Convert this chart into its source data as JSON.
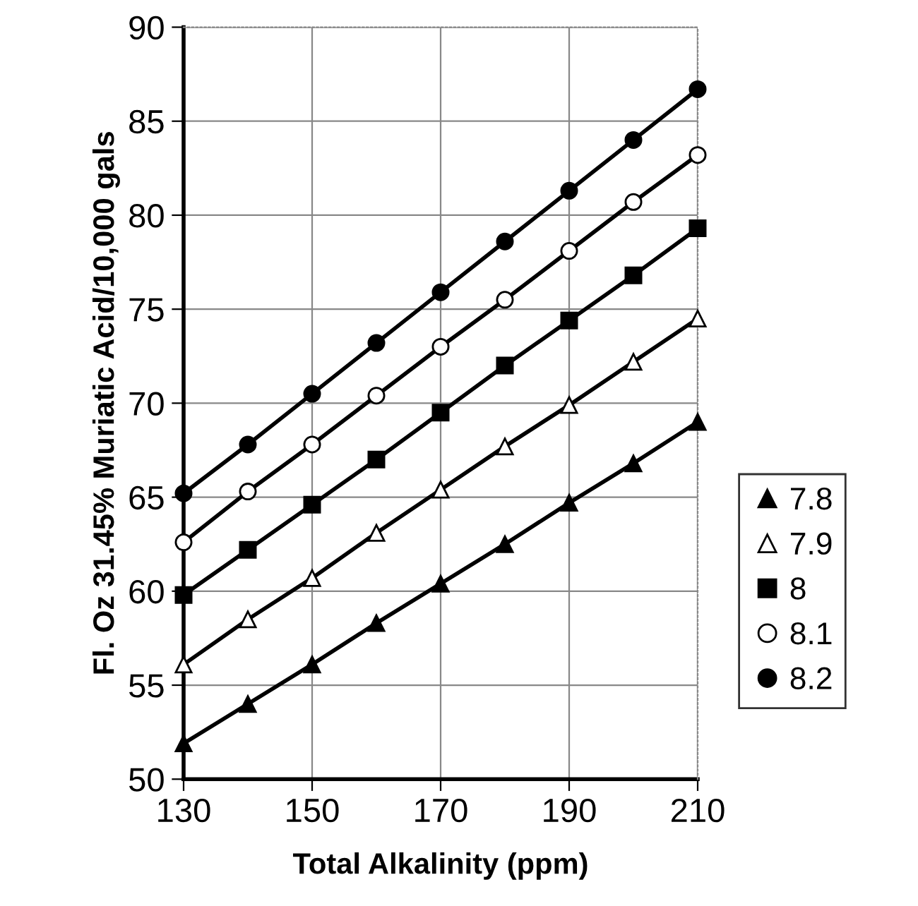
{
  "chart_data": {
    "type": "line",
    "xlabel": "Total Alkalinity (ppm)",
    "ylabel": "Fl. Oz 31.45% Muriatic Acid/10,000 gals",
    "x": [
      130,
      140,
      150,
      160,
      170,
      180,
      190,
      200,
      210
    ],
    "series": [
      {
        "name": "7.8",
        "color": "#000000",
        "marker": "triangle",
        "values": [
          51.9,
          54.0,
          56.1,
          58.3,
          60.4,
          62.5,
          64.7,
          66.8,
          69.0
        ]
      },
      {
        "name": "7.9",
        "color": "#ffffff",
        "marker": "triangle",
        "values": [
          56.1,
          58.5,
          60.7,
          63.1,
          65.4,
          67.7,
          69.9,
          72.2,
          74.5
        ]
      },
      {
        "name": "8",
        "color": "#000000",
        "marker": "square",
        "values": [
          59.8,
          62.2,
          64.6,
          67.0,
          69.5,
          72.0,
          74.4,
          76.8,
          79.3
        ]
      },
      {
        "name": "8.1",
        "color": "#ffffff",
        "marker": "circle",
        "values": [
          62.6,
          65.3,
          67.8,
          70.4,
          73.0,
          75.5,
          78.1,
          80.7,
          83.2
        ]
      },
      {
        "name": "8.2",
        "color": "#000000",
        "marker": "circle",
        "values": [
          65.2,
          67.8,
          70.5,
          73.2,
          75.9,
          78.6,
          81.3,
          84.0,
          86.7
        ]
      }
    ],
    "xlim": [
      130,
      210
    ],
    "xticks": [
      130,
      150,
      170,
      190,
      210
    ],
    "ylim": [
      50,
      90
    ],
    "yticks": [
      50,
      55,
      60,
      65,
      70,
      75,
      80,
      85,
      90
    ],
    "grid": true,
    "legend": "right",
    "line_style": "solid"
  }
}
